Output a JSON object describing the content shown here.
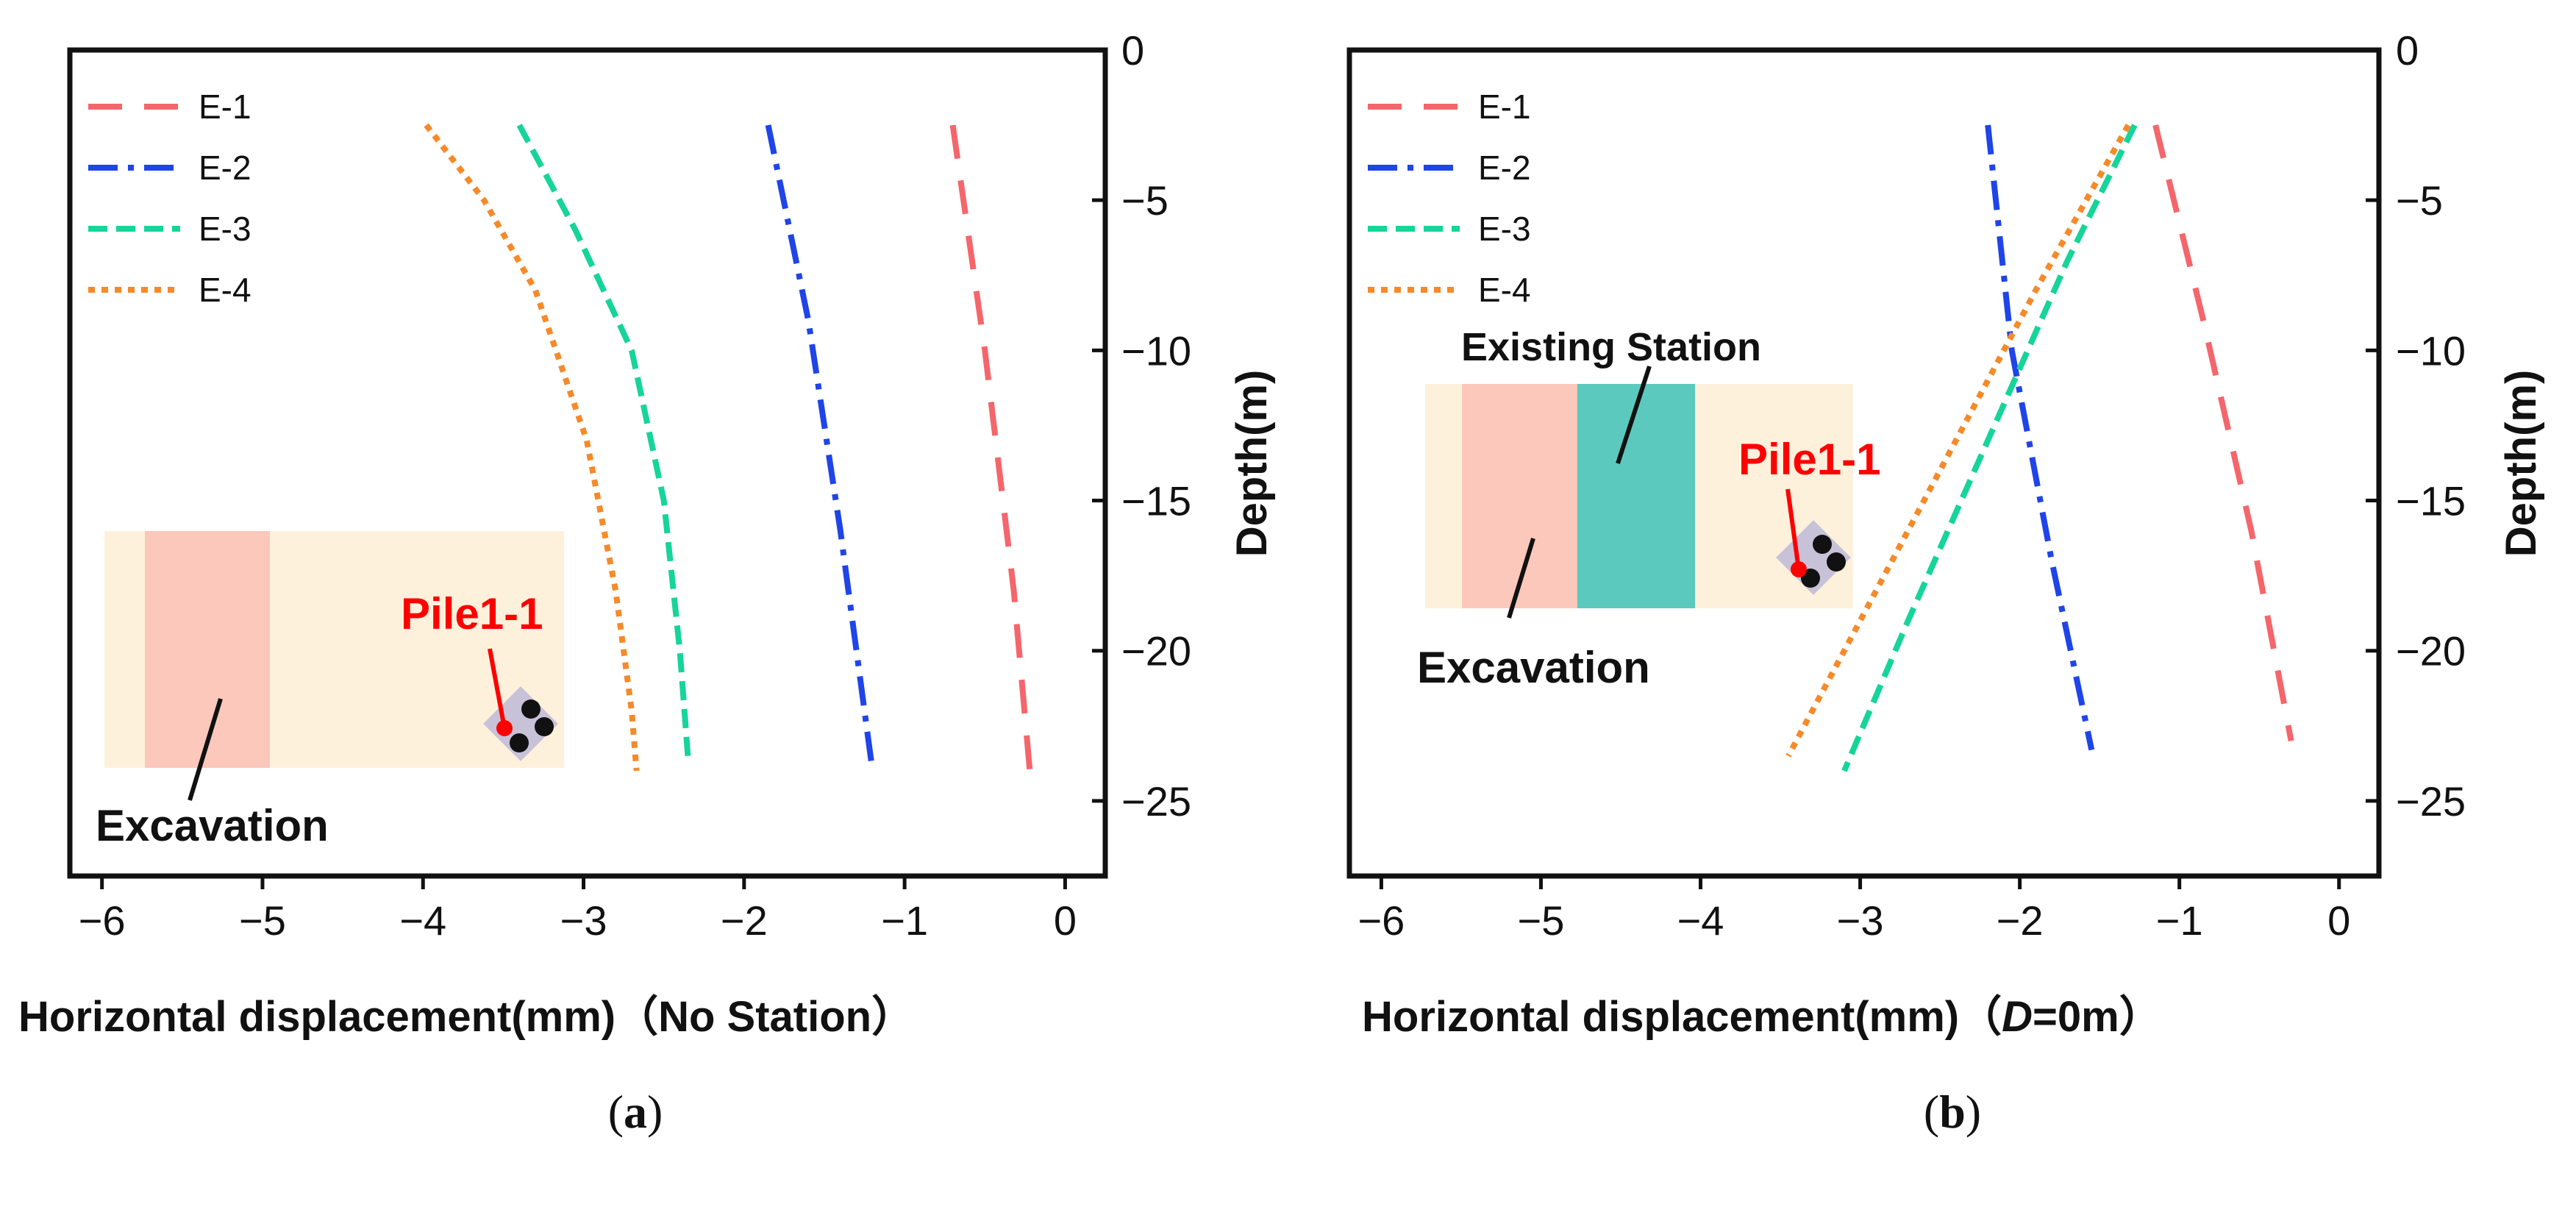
{
  "colors": {
    "E-1": "#f4666b",
    "E-2": "#1f44e8",
    "E-3": "#16d49a",
    "E-4": "#f58a2a",
    "excavation_fill": "#fcc8bb",
    "site_fill": "#fdf1dc",
    "station_fill": "#5cc9be",
    "pile_label": "#ff0000"
  },
  "chart_data": [
    {
      "type": "line",
      "panel_label": "a",
      "xlabel": "Horizontal displacement(mm)（No Station）",
      "ylabel": "Depth(m)",
      "xlim": [
        -6.2,
        0.25
      ],
      "ylim": [
        -27.5,
        0
      ],
      "xticks": [
        "−6",
        "−5",
        "−4",
        "−3",
        "−2",
        "−1",
        "0"
      ],
      "yticks": [
        "0",
        "−5",
        "−10",
        "−15",
        "−20",
        "−25"
      ],
      "legend_position": "top-left",
      "series": [
        {
          "name": "E-1",
          "style": "long-dash",
          "x": [
            -0.7,
            -0.5,
            -0.32,
            -0.22
          ],
          "y": [
            -2.5,
            -10,
            -18,
            -24
          ]
        },
        {
          "name": "E-2",
          "style": "dash-dot",
          "x": [
            -1.85,
            -1.6,
            -1.4,
            -1.2
          ],
          "y": [
            -2.5,
            -9,
            -16,
            -24
          ]
        },
        {
          "name": "E-3",
          "style": "dash",
          "x": [
            -3.4,
            -3.05,
            -2.7,
            -2.5,
            -2.4,
            -2.35
          ],
          "y": [
            -2.5,
            -6,
            -10,
            -15,
            -20,
            -23.5
          ]
        },
        {
          "name": "E-4",
          "style": "dot",
          "x": [
            -3.98,
            -3.62,
            -3.3,
            -2.98,
            -2.8,
            -2.7,
            -2.67
          ],
          "y": [
            -2.5,
            -5,
            -8,
            -13,
            -18,
            -22,
            -24
          ]
        }
      ],
      "annotations": {
        "excavation_label": "Excavation",
        "pile_label": "Pile1-1"
      }
    },
    {
      "type": "line",
      "panel_label": "b",
      "xlabel_prefix": "Horizontal displacement(mm)（",
      "xlabel_var": "D",
      "xlabel_suffix": "=0m）",
      "ylabel": "Depth(m)",
      "xlim": [
        -6.2,
        0.25
      ],
      "ylim": [
        -27.5,
        0
      ],
      "xticks": [
        "−6",
        "−5",
        "−4",
        "−3",
        "−2",
        "−1",
        "0"
      ],
      "yticks": [
        "0",
        "−5",
        "−10",
        "−15",
        "−20",
        "−25"
      ],
      "legend_position": "top-left",
      "series": [
        {
          "name": "E-1",
          "style": "long-dash",
          "x": [
            -1.15,
            -0.85,
            -0.55,
            -0.3
          ],
          "y": [
            -2.5,
            -9,
            -16,
            -23
          ]
        },
        {
          "name": "E-2",
          "style": "dash-dot",
          "x": [
            -2.2,
            -2.05,
            -1.8,
            -1.55
          ],
          "y": [
            -2.5,
            -10,
            -17,
            -23.3
          ]
        },
        {
          "name": "E-3",
          "style": "dash",
          "x": [
            -1.28,
            -1.7,
            -2.2,
            -2.7,
            -3.1
          ],
          "y": [
            -2.5,
            -7,
            -13,
            -19,
            -24
          ]
        },
        {
          "name": "E-4",
          "style": "dot",
          "x": [
            -1.32,
            -1.9,
            -2.5,
            -3.0,
            -3.45
          ],
          "y": [
            -2.5,
            -8,
            -14,
            -19,
            -23.5
          ]
        }
      ],
      "annotations": {
        "existing_station_label": "Existing Station",
        "excavation_label": "Excavation",
        "pile_label": "Pile1-1"
      }
    }
  ]
}
